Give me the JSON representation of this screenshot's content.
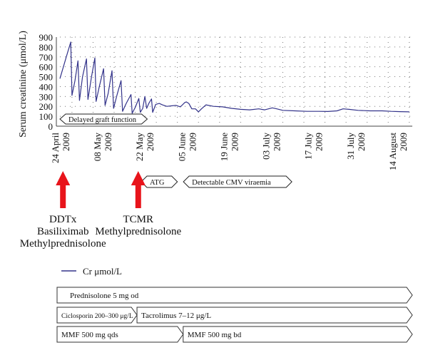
{
  "chart_data": {
    "type": "line",
    "ylabel": "Serum creatinine (μmol/L)",
    "ylim": [
      0,
      900
    ],
    "yticks": [
      0,
      100,
      200,
      300,
      400,
      500,
      600,
      700,
      800,
      900
    ],
    "grid": "dotted",
    "xlim_days": [
      0,
      117
    ],
    "date_ticks": [
      {
        "day": 0,
        "line1": "24 April",
        "line2": "2009"
      },
      {
        "day": 14,
        "line1": "08 May",
        "line2": "2009"
      },
      {
        "day": 28,
        "line1": "22 May",
        "line2": "2009"
      },
      {
        "day": 42,
        "line1": "05 June",
        "line2": "2009"
      },
      {
        "day": 56,
        "line1": "19 June",
        "line2": "2009"
      },
      {
        "day": 70,
        "line1": "03 July",
        "line2": "2009"
      },
      {
        "day": 84,
        "line1": "17 July",
        "line2": "2009"
      },
      {
        "day": 98,
        "line1": "31 July",
        "line2": "2009"
      },
      {
        "day": 112,
        "line1": "14 August",
        "line2": "2009"
      }
    ],
    "series": [
      {
        "name": "Cr μmol/L",
        "color": "#33338a",
        "points": [
          [
            0,
            480
          ],
          [
            2.5,
            740
          ],
          [
            3.6,
            850
          ],
          [
            4.0,
            310
          ],
          [
            5.0,
            460
          ],
          [
            6.0,
            660
          ],
          [
            6.5,
            260
          ],
          [
            7.5,
            500
          ],
          [
            8.8,
            680
          ],
          [
            9.3,
            270
          ],
          [
            10.5,
            500
          ],
          [
            11.6,
            690
          ],
          [
            12.0,
            250
          ],
          [
            13.0,
            390
          ],
          [
            14.5,
            580
          ],
          [
            15.0,
            210
          ],
          [
            16.0,
            330
          ],
          [
            17.3,
            560
          ],
          [
            17.8,
            180
          ],
          [
            19.0,
            320
          ],
          [
            20.3,
            460
          ],
          [
            20.8,
            150
          ],
          [
            22.0,
            230
          ],
          [
            23.6,
            320
          ],
          [
            24.0,
            130
          ],
          [
            25.0,
            190
          ],
          [
            26.2,
            280
          ],
          [
            26.7,
            140
          ],
          [
            27.5,
            180
          ],
          [
            28.2,
            300
          ],
          [
            28.8,
            180
          ],
          [
            29.5,
            230
          ],
          [
            30.4,
            275
          ],
          [
            30.8,
            140
          ],
          [
            31.8,
            220
          ],
          [
            33.0,
            230
          ],
          [
            34.0,
            215
          ],
          [
            35.5,
            200
          ],
          [
            37.0,
            205
          ],
          [
            38.5,
            210
          ],
          [
            40.0,
            195
          ],
          [
            41.5,
            240
          ],
          [
            42.0,
            245
          ],
          [
            42.8,
            230
          ],
          [
            43.8,
            175
          ],
          [
            45.0,
            175
          ],
          [
            46.0,
            145
          ],
          [
            47.0,
            175
          ],
          [
            48.5,
            215
          ],
          [
            51.0,
            200
          ],
          [
            54.0,
            195
          ],
          [
            57.0,
            180
          ],
          [
            60.0,
            170
          ],
          [
            63.0,
            165
          ],
          [
            66.0,
            175
          ],
          [
            68.0,
            165
          ],
          [
            70.5,
            185
          ],
          [
            72.0,
            175
          ],
          [
            74.0,
            160
          ],
          [
            78.0,
            155
          ],
          [
            82.0,
            150
          ],
          [
            86.0,
            150
          ],
          [
            89.0,
            148
          ],
          [
            92.0,
            155
          ],
          [
            94.0,
            175
          ],
          [
            96.0,
            170
          ],
          [
            99.0,
            160
          ],
          [
            103.0,
            155
          ],
          [
            107.0,
            155
          ],
          [
            110.0,
            150
          ],
          [
            113.0,
            147
          ],
          [
            116.0,
            145
          ]
        ]
      }
    ],
    "annotations": [
      {
        "label": "Delayed graft function",
        "start_day": 0,
        "end_day": 29,
        "row": "axis"
      },
      {
        "label": "ATG",
        "start_day": 27,
        "end_day": 39,
        "row": "below-dates"
      },
      {
        "label": "Detectable CMV viraemia",
        "start_day": 41,
        "end_day": 77,
        "row": "below-dates"
      }
    ],
    "events": [
      {
        "day": 1,
        "lines": [
          "DDTx",
          "Basiliximab",
          "Methylprednisolone"
        ]
      },
      {
        "day": 26,
        "lines": [
          "TCMR",
          "Methylprednisolone"
        ]
      }
    ],
    "legend": {
      "position": "bottom-left",
      "label": "Cr μmol/L"
    },
    "medications": [
      [
        {
          "label": "Prednisolone 5 mg od",
          "start": 0.0,
          "end": 1.0
        }
      ],
      [
        {
          "label": "Ciclosporin 200–300 μg/L",
          "start": 0.0,
          "end": 0.225
        },
        {
          "label": "Tacrolimus 7–12 μg/L",
          "start": 0.225,
          "end": 1.0
        }
      ],
      [
        {
          "label": "MMF 500 mg qds",
          "start": 0.0,
          "end": 0.355
        },
        {
          "label": "MMF 500 mg bd",
          "start": 0.355,
          "end": 1.0
        }
      ]
    ]
  }
}
